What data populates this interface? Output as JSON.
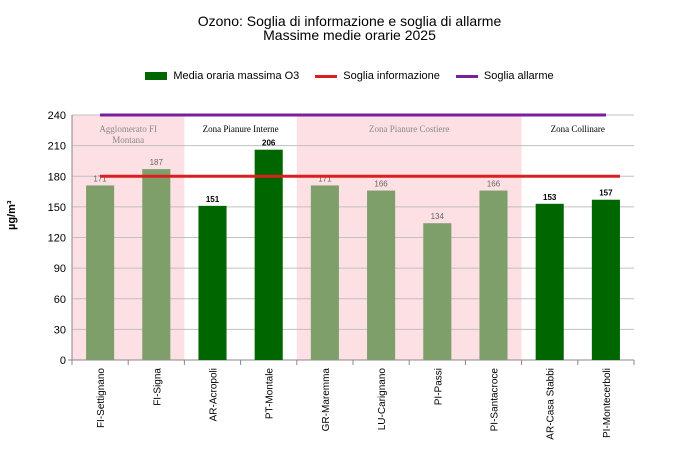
{
  "title": "Ozono: Soglia di informazione e soglia di allarme",
  "subtitle": "Massime medie orarie 2025",
  "legend": [
    {
      "label": "Media oraria massima  O3",
      "color": "#006600",
      "kind": "box"
    },
    {
      "label": "Soglia informazione",
      "color": "#d91f1f",
      "kind": "line"
    },
    {
      "label": "Soglia allarme",
      "color": "#7a1f9c",
      "kind": "line"
    }
  ],
  "chart_data": {
    "type": "bar",
    "title": "Ozono: Soglia di informazione e soglia di allarme",
    "subtitle": "Massime medie orarie 2025",
    "ylabel": "µg/m³",
    "xlabel": "",
    "ylim": [
      0,
      240
    ],
    "yticks": [
      0,
      30,
      60,
      90,
      120,
      150,
      180,
      210,
      240
    ],
    "categories": [
      "FI-Settignano",
      "FI-Signa",
      "AR-Acropoli",
      "PT-Montale",
      "GR-Maremma",
      "LU-Carignano",
      "PI-Passi",
      "PI-Santacroce",
      "AR-Casa Stabbi",
      "PI-Montecerboli"
    ],
    "series": [
      {
        "name": "Media oraria massima  O3",
        "values": [
          171,
          187,
          151,
          206,
          171,
          166,
          134,
          166,
          153,
          157
        ]
      },
      {
        "name": "Soglia informazione",
        "value": 180
      },
      {
        "name": "Soglia allarme",
        "value": 240
      }
    ],
    "data_labels": [
      "171",
      "187",
      "151",
      "206",
      "171",
      "166",
      "134",
      "166",
      "153",
      "157"
    ],
    "zones": [
      {
        "label": "Agglomerato FI Montana",
        "lines": [
          "Agglomerato FI",
          "Montana"
        ],
        "start": 0,
        "end": 1,
        "shaded": true
      },
      {
        "label": "Zona Pianure Interne",
        "lines": [
          "Zona Pianure Interne"
        ],
        "start": 2,
        "end": 3,
        "shaded": false
      },
      {
        "label": "Zona Pianure Costiere",
        "lines": [
          "Zona Pianure Costiere"
        ],
        "start": 4,
        "end": 7,
        "shaded": true
      },
      {
        "label": "Zona Collinare",
        "lines": [
          "Zona Collinare"
        ],
        "start": 8,
        "end": 9,
        "shaded": false
      }
    ],
    "colors": {
      "bar_dark": "#006600",
      "bar_light": "#7f9f6a",
      "zone_fill": "#fde0e4",
      "soglia_informazione": "#d91f1f",
      "soglia_allarme": "#7a1f9c",
      "grid": "#c0c0c0"
    },
    "grid": true,
    "legend_position": "top"
  }
}
